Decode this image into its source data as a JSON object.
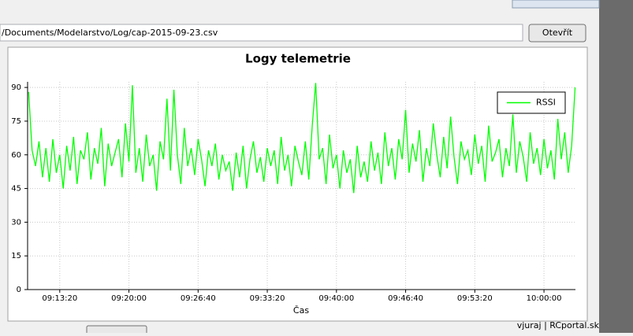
{
  "ui": {
    "path": "/Documents/Modelarstvo/Log/cap-2015-09-23.csv",
    "open_button": "Otevřít",
    "watermark": "vjuraj | RCportal.sk"
  },
  "chart_data": {
    "type": "line",
    "title": "Logy telemetrie",
    "x_label": "Čas",
    "x": [
      "09:10:20",
      "09:10:40",
      "09:11:00",
      "09:11:20",
      "09:11:40",
      "09:12:00",
      "09:12:20",
      "09:12:40",
      "09:13:00",
      "09:13:20",
      "09:13:40",
      "09:14:00",
      "09:14:20",
      "09:14:40",
      "09:15:00",
      "09:15:20",
      "09:15:40",
      "09:16:00",
      "09:16:20",
      "09:16:40",
      "09:17:00",
      "09:17:20",
      "09:17:40",
      "09:18:00",
      "09:18:20",
      "09:18:40",
      "09:19:00",
      "09:19:20",
      "09:19:40",
      "09:20:00",
      "09:20:20",
      "09:20:40",
      "09:21:00",
      "09:21:20",
      "09:21:40",
      "09:22:00",
      "09:22:20",
      "09:22:40",
      "09:23:00",
      "09:23:20",
      "09:23:40",
      "09:24:00",
      "09:24:20",
      "09:24:40",
      "09:25:00",
      "09:25:20",
      "09:25:40",
      "09:26:00",
      "09:26:20",
      "09:26:40",
      "09:27:00",
      "09:27:20",
      "09:27:40",
      "09:28:00",
      "09:28:20",
      "09:28:40",
      "09:29:00",
      "09:29:20",
      "09:29:40",
      "09:30:00",
      "09:30:20",
      "09:30:40",
      "09:31:00",
      "09:31:20",
      "09:31:40",
      "09:32:00",
      "09:32:20",
      "09:32:40",
      "09:33:00",
      "09:33:20",
      "09:33:40",
      "09:34:00",
      "09:34:20",
      "09:34:40",
      "09:35:00",
      "09:35:20",
      "09:35:40",
      "09:36:00",
      "09:36:20",
      "09:36:40",
      "09:37:00",
      "09:37:20",
      "09:37:40",
      "09:38:00",
      "09:38:20",
      "09:38:40",
      "09:39:00",
      "09:39:20",
      "09:39:40",
      "09:40:00",
      "09:40:20",
      "09:40:40",
      "09:41:00",
      "09:41:20",
      "09:41:40",
      "09:42:00",
      "09:42:20",
      "09:42:40",
      "09:43:00",
      "09:43:20",
      "09:43:40",
      "09:44:00",
      "09:44:20",
      "09:44:40",
      "09:45:00",
      "09:45:20",
      "09:45:40",
      "09:46:00",
      "09:46:20",
      "09:46:40",
      "09:47:00",
      "09:47:20",
      "09:47:40",
      "09:48:00",
      "09:48:20",
      "09:48:40",
      "09:49:00",
      "09:49:20",
      "09:49:40",
      "09:50:00",
      "09:50:20",
      "09:50:40",
      "09:51:00",
      "09:51:20",
      "09:51:40",
      "09:52:00",
      "09:52:20",
      "09:52:40",
      "09:53:00",
      "09:53:20",
      "09:53:40",
      "09:54:00",
      "09:54:20",
      "09:54:40",
      "09:55:00",
      "09:55:20",
      "09:55:40",
      "09:56:00",
      "09:56:20",
      "09:56:40",
      "09:57:00",
      "09:57:20",
      "09:57:40",
      "09:58:00",
      "09:58:20",
      "09:58:40",
      "09:59:00",
      "09:59:20",
      "09:59:40",
      "10:00:00",
      "10:00:20",
      "10:00:40",
      "10:01:00",
      "10:01:20",
      "10:01:40",
      "10:02:00",
      "10:02:20",
      "10:02:40",
      "10:03:00"
    ],
    "series": [
      {
        "name": "RSSI",
        "color": "#00ff00",
        "values": [
          88,
          62,
          55,
          66,
          50,
          63,
          48,
          67,
          52,
          60,
          45,
          64,
          53,
          68,
          47,
          62,
          58,
          70,
          49,
          63,
          56,
          72,
          46,
          65,
          55,
          61,
          67,
          50,
          74,
          57,
          91,
          52,
          63,
          48,
          69,
          55,
          60,
          44,
          66,
          58,
          85,
          53,
          89,
          60,
          47,
          72,
          55,
          63,
          51,
          67,
          58,
          46,
          62,
          55,
          65,
          49,
          60,
          53,
          57,
          44,
          61,
          50,
          64,
          45,
          58,
          66,
          52,
          59,
          48,
          63,
          55,
          62,
          47,
          68,
          53,
          60,
          46,
          64,
          57,
          51,
          66,
          49,
          73,
          92,
          58,
          63,
          47,
          69,
          54,
          60,
          45,
          62,
          52,
          58,
          43,
          64,
          50,
          57,
          48,
          66,
          53,
          61,
          47,
          70,
          55,
          63,
          49,
          67,
          58,
          80,
          52,
          65,
          57,
          71,
          48,
          63,
          55,
          74,
          60,
          50,
          68,
          54,
          77,
          59,
          47,
          66,
          58,
          62,
          51,
          69,
          56,
          64,
          48,
          73,
          57,
          61,
          67,
          50,
          63,
          55,
          78,
          52,
          66,
          59,
          48,
          70,
          56,
          63,
          51,
          67,
          54,
          62,
          49,
          76,
          58,
          70,
          52,
          64,
          90
        ]
      }
    ],
    "xlim": [
      "09:10:14",
      "10:03:02"
    ],
    "ylim": [
      0,
      92.5
    ],
    "xticks": [
      "09:13:20",
      "09:20:00",
      "09:26:40",
      "09:33:20",
      "09:40:00",
      "09:46:40",
      "09:53:20",
      "10:00:00"
    ],
    "yticks": [
      0,
      15,
      30,
      45,
      60,
      75,
      90
    ],
    "grid": true,
    "legend": "upper right"
  }
}
